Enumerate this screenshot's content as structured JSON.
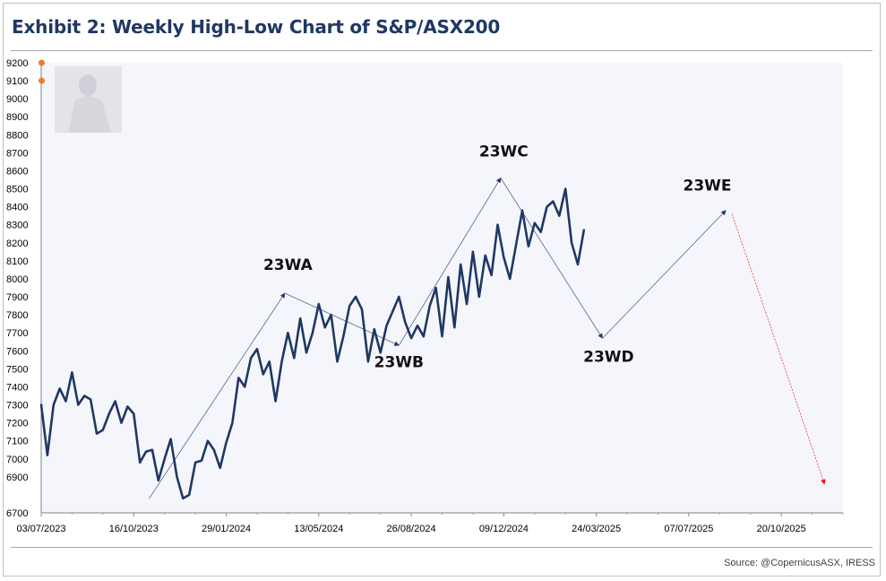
{
  "header": {
    "title": "Exhibit 2: Weekly High-Low Chart of S&P/ASX200"
  },
  "footer": {
    "source": "Source: @CopernicusASX, IRESS"
  },
  "colors": {
    "title": "#1f3864",
    "price_line": "#1f3864",
    "projection": "#1f3864",
    "final_projection": "#ff0000",
    "marker": "#ed7d31",
    "plot_bg": "#f5f6fb"
  },
  "icons": {
    "watermark": "statue-watermark-icon"
  },
  "chart_data": {
    "type": "line",
    "title": "Exhibit 2: Weekly High-Low Chart of S&P/ASX200",
    "xlabel": "",
    "ylabel": "",
    "x_ticks": [
      "03/07/2023",
      "16/10/2023",
      "29/01/2024",
      "13/05/2024",
      "26/08/2024",
      "09/12/2024",
      "24/03/2025",
      "07/07/2025",
      "20/10/2025"
    ],
    "y_ticks": [
      6700,
      6900,
      7000,
      7100,
      7200,
      7300,
      7400,
      7500,
      7600,
      7700,
      7800,
      7900,
      8000,
      8100,
      8200,
      8300,
      8400,
      8500,
      8600,
      8700,
      8800,
      8900,
      9000,
      9100,
      9200
    ],
    "ylim": [
      6700,
      9200
    ],
    "xlim_weeks": [
      0,
      130
    ],
    "grid": false,
    "legend": "none",
    "series": [
      {
        "weeks": [
          0,
          1,
          2,
          3,
          4,
          5,
          6,
          7,
          8,
          9,
          10,
          11,
          12,
          13,
          14,
          15,
          16,
          17,
          18,
          19,
          20,
          21,
          22,
          23,
          24,
          25,
          26,
          27,
          28,
          29,
          30,
          31,
          32,
          33,
          34,
          35,
          36,
          37,
          38,
          39,
          40,
          41,
          42,
          43,
          44,
          45,
          46,
          47,
          48,
          49,
          50,
          51,
          52,
          53,
          54,
          55,
          56,
          57,
          58,
          59,
          60,
          61,
          62,
          63,
          64,
          65,
          66,
          67,
          68,
          69,
          70,
          71,
          72,
          73,
          74,
          75,
          76,
          77,
          78,
          79,
          80,
          81,
          82,
          83,
          84,
          85,
          86,
          87,
          88
        ],
        "values": [
          7300,
          7020,
          7300,
          7390,
          7320,
          7480,
          7300,
          7350,
          7330,
          7140,
          7160,
          7250,
          7320,
          7200,
          7290,
          7250,
          6980,
          7040,
          7050,
          6880,
          7000,
          7110,
          6900,
          6780,
          6800,
          6980,
          6990,
          7100,
          7050,
          6950,
          7090,
          7200,
          7450,
          7400,
          7560,
          7610,
          7470,
          7540,
          7320,
          7540,
          7700,
          7560,
          7780,
          7590,
          7700,
          7860,
          7730,
          7800,
          7540,
          7680,
          7850,
          7900,
          7830,
          7540,
          7720,
          7590,
          7740,
          7820,
          7900,
          7760,
          7670,
          7740,
          7680,
          7850,
          7950,
          7680,
          8010,
          7730,
          8080,
          7860,
          8150,
          7900,
          8130,
          8020,
          8300,
          8120,
          8000,
          8190,
          8380,
          8180,
          8310,
          8260,
          8400,
          8430,
          8350,
          8500,
          8200,
          8080,
          8270
        ]
      }
    ],
    "projections": [
      {
        "from": {
          "week": 17.5,
          "value": 6780
        },
        "to": {
          "week": 39.5,
          "value": 7920
        },
        "color": "#1f3864"
      },
      {
        "from": {
          "week": 39.5,
          "value": 7920
        },
        "to": {
          "week": 58,
          "value": 7630
        },
        "color": "#1f3864"
      },
      {
        "from": {
          "week": 58,
          "value": 7630
        },
        "to": {
          "week": 74.5,
          "value": 8560
        },
        "color": "#1f3864"
      },
      {
        "from": {
          "week": 74.5,
          "value": 8560
        },
        "to": {
          "week": 91,
          "value": 7670
        },
        "color": "#1f3864"
      },
      {
        "from": {
          "week": 91,
          "value": 7670
        },
        "to": {
          "week": 111,
          "value": 8380
        },
        "color": "#1f3864"
      },
      {
        "from": {
          "week": 112,
          "value": 8360
        },
        "to": {
          "week": 127,
          "value": 6860
        },
        "color": "#ff0000"
      }
    ],
    "annotations": [
      {
        "text": "23WA",
        "week": 40,
        "value": 8050
      },
      {
        "text": "23WB",
        "week": 58,
        "value": 7510
      },
      {
        "text": "23WC",
        "week": 75,
        "value": 8680
      },
      {
        "text": "23WD",
        "week": 92,
        "value": 7540
      },
      {
        "text": "23WE",
        "week": 108,
        "value": 8490
      }
    ],
    "markers": [
      {
        "value": 9200,
        "color": "#ed7d31"
      },
      {
        "value": 9100,
        "color": "#ed7d31"
      }
    ]
  }
}
